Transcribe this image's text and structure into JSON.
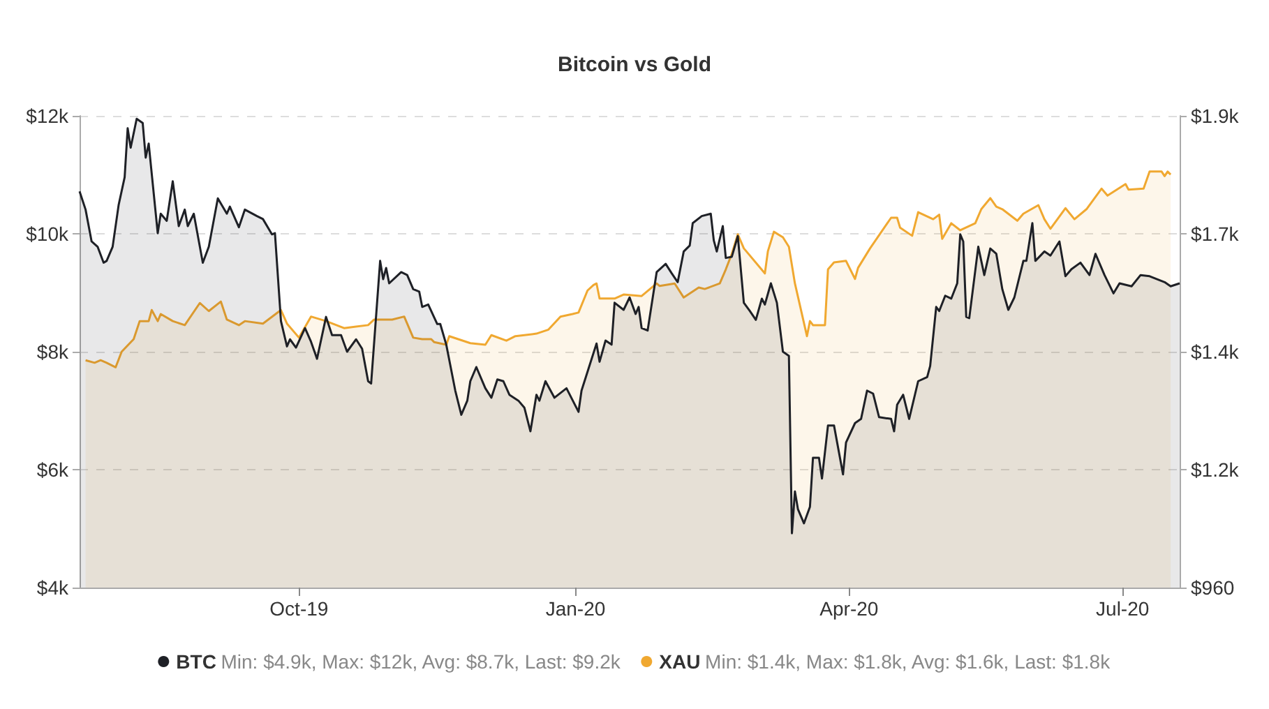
{
  "chart_data": {
    "type": "area",
    "title": "Bitcoin vs Gold",
    "annotations": [
      "Min: $4.9k, Max: $12k, Avg: $8.7k, Last: $9.2k",
      "Min: $1.4k, Max: $1.8k, Avg: $1.6k, Last: $1.8k"
    ],
    "xlim": [
      "2019-07-20",
      "2020-07-20"
    ],
    "xticks": [
      {
        "value": "2019-10-01",
        "label": "Oct-19"
      },
      {
        "value": "2020-01-01",
        "label": "Jan-20"
      },
      {
        "value": "2020-04-01",
        "label": "Apr-20"
      },
      {
        "value": "2020-07-01",
        "label": "Jul-20"
      }
    ],
    "ylim": [
      4000,
      12000
    ],
    "yticks": [
      {
        "value": 4000,
        "label": "$4k"
      },
      {
        "value": 6000,
        "label": "$6k"
      },
      {
        "value": 8000,
        "label": "$8k"
      },
      {
        "value": 10000,
        "label": "$10k"
      },
      {
        "value": 12000,
        "label": "$12k"
      }
    ],
    "y2lim": [
      960,
      1900
    ],
    "y2ticks": [
      {
        "value": 960,
        "label": "$960"
      },
      {
        "value": 1195,
        "label": "$1.2k"
      },
      {
        "value": 1430,
        "label": "$1.4k"
      },
      {
        "value": 1665,
        "label": "$1.7k"
      },
      {
        "value": 1900,
        "label": "$1.9k"
      }
    ],
    "grid": "y",
    "legend": "bottom",
    "marker": "none",
    "line_style": "solid",
    "series": [
      {
        "name": "BTC",
        "color": "#1e2026",
        "x": [
          "2019-07-20",
          "2019-07-22",
          "2019-07-24",
          "2019-07-26",
          "2019-07-28",
          "2019-07-29",
          "2019-07-31",
          "2019-08-02",
          "2019-08-04",
          "2019-08-05",
          "2019-08-06",
          "2019-08-08",
          "2019-08-10",
          "2019-08-11",
          "2019-08-12",
          "2019-08-15",
          "2019-08-16",
          "2019-08-18",
          "2019-08-20",
          "2019-08-22",
          "2019-08-24",
          "2019-08-25",
          "2019-08-27",
          "2019-08-30",
          "2019-09-01",
          "2019-09-04",
          "2019-09-07",
          "2019-09-08",
          "2019-09-11",
          "2019-09-13",
          "2019-09-17",
          "2019-09-19",
          "2019-09-22",
          "2019-09-23",
          "2019-09-25",
          "2019-09-27",
          "2019-09-28",
          "2019-09-30",
          "2019-10-03",
          "2019-10-05",
          "2019-10-07",
          "2019-10-10",
          "2019-10-12",
          "2019-10-15",
          "2019-10-17",
          "2019-10-20",
          "2019-10-22",
          "2019-10-24",
          "2019-10-25",
          "2019-10-28",
          "2019-10-29",
          "2019-10-30",
          "2019-10-31",
          "2019-11-04",
          "2019-11-06",
          "2019-11-08",
          "2019-11-10",
          "2019-11-11",
          "2019-11-13",
          "2019-11-16",
          "2019-11-17",
          "2019-11-19",
          "2019-11-22",
          "2019-11-24",
          "2019-11-26",
          "2019-11-27",
          "2019-11-29",
          "2019-12-02",
          "2019-12-04",
          "2019-12-06",
          "2019-12-08",
          "2019-12-10",
          "2019-12-13",
          "2019-12-15",
          "2019-12-17",
          "2019-12-19",
          "2019-12-20",
          "2019-12-22",
          "2019-12-25",
          "2019-12-29",
          "2020-01-02",
          "2020-01-03",
          "2020-01-08",
          "2020-01-09",
          "2020-01-11",
          "2020-01-13",
          "2020-01-14",
          "2020-01-17",
          "2020-01-19",
          "2020-01-21",
          "2020-01-22",
          "2020-01-23",
          "2020-01-25",
          "2020-01-28",
          "2020-01-31",
          "2020-02-02",
          "2020-02-04",
          "2020-02-06",
          "2020-02-08",
          "2020-02-09",
          "2020-02-12",
          "2020-02-15",
          "2020-02-16",
          "2020-02-17",
          "2020-02-19",
          "2020-02-20",
          "2020-02-22",
          "2020-02-24",
          "2020-02-26",
          "2020-02-28",
          "2020-03-01",
          "2020-03-03",
          "2020-03-04",
          "2020-03-06",
          "2020-03-08",
          "2020-03-10",
          "2020-03-12",
          "2020-03-13",
          "2020-03-14",
          "2020-03-15",
          "2020-03-17",
          "2020-03-19",
          "2020-03-20",
          "2020-03-22",
          "2020-03-23",
          "2020-03-25",
          "2020-03-27",
          "2020-03-30",
          "2020-03-31",
          "2020-04-03",
          "2020-04-05",
          "2020-04-07",
          "2020-04-09",
          "2020-04-11",
          "2020-04-15",
          "2020-04-16",
          "2020-04-17",
          "2020-04-19",
          "2020-04-21",
          "2020-04-24",
          "2020-04-27",
          "2020-04-28",
          "2020-04-30",
          "2020-05-01",
          "2020-05-03",
          "2020-05-05",
          "2020-05-07",
          "2020-05-08",
          "2020-05-09",
          "2020-05-10",
          "2020-05-11",
          "2020-05-14",
          "2020-05-16",
          "2020-05-18",
          "2020-05-20",
          "2020-05-22",
          "2020-05-24",
          "2020-05-26",
          "2020-05-29",
          "2020-05-30",
          "2020-06-01",
          "2020-06-02",
          "2020-06-05",
          "2020-06-07",
          "2020-06-10",
          "2020-06-12",
          "2020-06-14",
          "2020-06-17",
          "2020-06-20",
          "2020-06-22",
          "2020-06-25",
          "2020-06-28",
          "2020-06-30",
          "2020-07-04",
          "2020-07-07",
          "2020-07-10",
          "2020-07-15",
          "2020-07-17",
          "2020-07-20"
        ],
        "values": [
          10720,
          10410,
          9870,
          9780,
          9510,
          9540,
          9780,
          10490,
          10960,
          11790,
          11460,
          11950,
          11880,
          11290,
          11530,
          10010,
          10340,
          10220,
          10890,
          10130,
          10410,
          10130,
          10340,
          9510,
          9780,
          10600,
          10340,
          10460,
          10110,
          10410,
          10300,
          10250,
          9990,
          10010,
          8520,
          8090,
          8210,
          8070,
          8400,
          8170,
          7880,
          8590,
          8280,
          8280,
          8000,
          8210,
          8050,
          7500,
          7460,
          9540,
          9230,
          9420,
          9160,
          9350,
          9300,
          9060,
          9020,
          8760,
          8800,
          8470,
          8470,
          8120,
          7340,
          6930,
          7170,
          7500,
          7740,
          7380,
          7220,
          7530,
          7500,
          7270,
          7170,
          7050,
          6650,
          7270,
          7170,
          7500,
          7220,
          7380,
          6980,
          7340,
          8140,
          7830,
          8190,
          8120,
          8830,
          8710,
          8920,
          8640,
          8760,
          8400,
          8360,
          9350,
          9490,
          9330,
          9180,
          9700,
          9800,
          10180,
          10300,
          10340,
          9890,
          9700,
          10130,
          9590,
          9610,
          9960,
          8830,
          8690,
          8540,
          8900,
          8800,
          9160,
          8830,
          8000,
          7930,
          4920,
          5630,
          5330,
          5090,
          5370,
          6200,
          6200,
          5850,
          6750,
          6750,
          5920,
          6460,
          6790,
          6860,
          7340,
          7290,
          6890,
          6860,
          6650,
          7100,
          7270,
          6860,
          7500,
          7570,
          7760,
          8760,
          8690,
          8950,
          8900,
          9160,
          9990,
          9870,
          8590,
          8570,
          9780,
          9300,
          9750,
          9660,
          9060,
          8710,
          8920,
          9540,
          9540,
          10180,
          9540,
          9700,
          9630,
          9870,
          9280,
          9400,
          9510,
          9300,
          9660,
          9300,
          8990,
          9160,
          9110,
          9300,
          9280,
          9180,
          9110,
          9160
        ]
      },
      {
        "name": "XAU",
        "color": "#f0a830",
        "axis": "y2",
        "x": [
          "2019-07-22",
          "2019-07-25",
          "2019-07-27",
          "2019-07-29",
          "2019-08-01",
          "2019-08-03",
          "2019-08-07",
          "2019-08-09",
          "2019-08-12",
          "2019-08-13",
          "2019-08-15",
          "2019-08-16",
          "2019-08-20",
          "2019-08-24",
          "2019-08-29",
          "2019-09-01",
          "2019-09-05",
          "2019-09-07",
          "2019-09-11",
          "2019-09-13",
          "2019-09-19",
          "2019-09-25",
          "2019-09-27",
          "2019-10-01",
          "2019-10-05",
          "2019-10-10",
          "2019-10-16",
          "2019-10-24",
          "2019-10-26",
          "2019-11-01",
          "2019-11-05",
          "2019-11-08",
          "2019-11-11",
          "2019-11-14",
          "2019-11-15",
          "2019-11-19",
          "2019-11-20",
          "2019-11-27",
          "2019-12-02",
          "2019-12-04",
          "2019-12-09",
          "2019-12-12",
          "2019-12-19",
          "2019-12-23",
          "2019-12-27",
          "2019-12-31",
          "2020-01-02",
          "2020-01-05",
          "2020-01-07",
          "2020-01-08",
          "2020-01-09",
          "2020-01-14",
          "2020-01-17",
          "2020-01-23",
          "2020-01-28",
          "2020-01-29",
          "2020-02-03",
          "2020-02-06",
          "2020-02-11",
          "2020-02-13",
          "2020-02-18",
          "2020-02-20",
          "2020-02-22",
          "2020-02-24",
          "2020-02-26",
          "2020-03-04",
          "2020-03-05",
          "2020-03-07",
          "2020-03-10",
          "2020-03-12",
          "2020-03-14",
          "2020-03-18",
          "2020-03-19",
          "2020-03-20",
          "2020-03-24",
          "2020-03-25",
          "2020-03-27",
          "2020-03-31",
          "2020-04-03",
          "2020-04-04",
          "2020-04-08",
          "2020-04-15",
          "2020-04-17",
          "2020-04-18",
          "2020-04-22",
          "2020-04-24",
          "2020-04-29",
          "2020-05-01",
          "2020-05-02",
          "2020-05-05",
          "2020-05-08",
          "2020-05-13",
          "2020-05-15",
          "2020-05-18",
          "2020-05-20",
          "2020-05-22",
          "2020-05-27",
          "2020-05-29",
          "2020-06-03",
          "2020-06-05",
          "2020-06-07",
          "2020-06-12",
          "2020-06-15",
          "2020-06-19",
          "2020-06-24",
          "2020-06-26",
          "2020-07-02",
          "2020-07-03",
          "2020-07-08",
          "2020-07-10",
          "2020-07-14",
          "2020-07-15",
          "2020-07-16",
          "2020-07-17"
        ],
        "values": [
          1413,
          1408,
          1413,
          1408,
          1399,
          1430,
          1455,
          1491,
          1491,
          1513,
          1491,
          1505,
          1491,
          1483,
          1527,
          1511,
          1530,
          1494,
          1483,
          1491,
          1486,
          1513,
          1486,
          1458,
          1500,
          1491,
          1477,
          1483,
          1494,
          1494,
          1500,
          1458,
          1455,
          1455,
          1449,
          1444,
          1461,
          1447,
          1444,
          1463,
          1452,
          1461,
          1466,
          1474,
          1500,
          1505,
          1508,
          1552,
          1563,
          1566,
          1536,
          1536,
          1544,
          1541,
          1566,
          1561,
          1566,
          1538,
          1558,
          1555,
          1566,
          1594,
          1625,
          1664,
          1636,
          1586,
          1630,
          1669,
          1658,
          1639,
          1566,
          1461,
          1491,
          1483,
          1483,
          1594,
          1608,
          1611,
          1575,
          1597,
          1636,
          1697,
          1697,
          1677,
          1661,
          1708,
          1694,
          1703,
          1655,
          1686,
          1672,
          1686,
          1714,
          1736,
          1719,
          1714,
          1691,
          1705,
          1722,
          1694,
          1675,
          1716,
          1694,
          1714,
          1755,
          1741,
          1764,
          1753,
          1755,
          1789,
          1789,
          1780,
          1789,
          1783
        ]
      }
    ]
  }
}
